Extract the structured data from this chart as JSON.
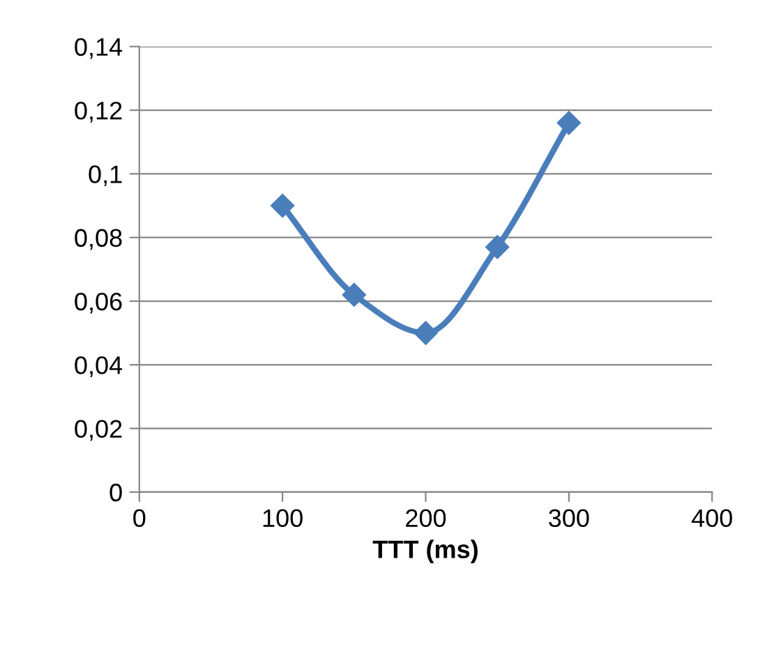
{
  "chart_data": {
    "type": "line",
    "xlabel": "TTT (ms)",
    "x": [
      100,
      150,
      200,
      250,
      300
    ],
    "series": [
      {
        "color": "#4a7ebb",
        "values": [
          0.09,
          0.062,
          0.05,
          0.077,
          0.116
        ]
      }
    ],
    "xlim": [
      0,
      400
    ],
    "xticks": [
      0,
      100,
      200,
      300,
      400
    ],
    "ylim": [
      0,
      0.14
    ],
    "yticks": [
      {
        "value": 0,
        "label": "0"
      },
      {
        "value": 0.02,
        "label": "0,02"
      },
      {
        "value": 0.04,
        "label": "0,04"
      },
      {
        "value": 0.06,
        "label": "0,06"
      },
      {
        "value": 0.08,
        "label": "0,08"
      },
      {
        "value": 0.1,
        "label": "0,1"
      },
      {
        "value": 0.12,
        "label": "0,12"
      },
      {
        "value": 0.14,
        "label": "0,14"
      }
    ],
    "grid": "y",
    "marker": "diamond",
    "line_style": "solid"
  }
}
